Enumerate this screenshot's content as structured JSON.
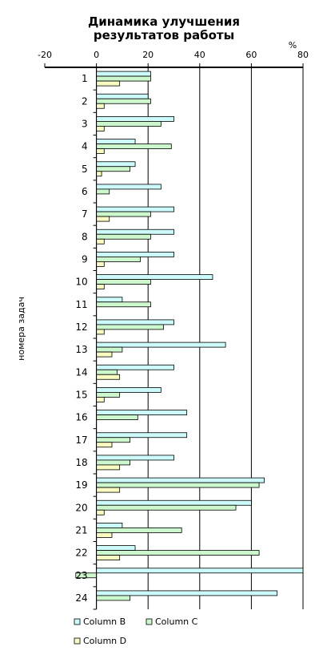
{
  "chart_data": {
    "type": "bar",
    "orientation": "horizontal",
    "title_lines": [
      "Динамика улучшения",
      "результатов работы"
    ],
    "xlabel_unit": "%",
    "ylabel": "номера задач",
    "xlim": [
      -20,
      80
    ],
    "xticks": [
      -20,
      0,
      20,
      40,
      60,
      80
    ],
    "grid": "vertical",
    "legend_position": "bottom",
    "categories": [
      "1",
      "2",
      "3",
      "4",
      "5",
      "6",
      "7",
      "8",
      "9",
      "10",
      "11",
      "12",
      "13",
      "14",
      "15",
      "16",
      "17",
      "18",
      "19",
      "20",
      "21",
      "22",
      "23",
      "24"
    ],
    "series": [
      {
        "name": "Column B",
        "color": "#cdfafa",
        "values": [
          21,
          20,
          30,
          15,
          15,
          25,
          30,
          30,
          30,
          45,
          10,
          30,
          50,
          30,
          25,
          35,
          35,
          30,
          65,
          60,
          10,
          15,
          80,
          70
        ]
      },
      {
        "name": "Column C",
        "color": "#cdf7cd",
        "values": [
          21,
          21,
          25,
          29,
          13,
          5,
          21,
          21,
          17,
          21,
          21,
          26,
          10,
          8,
          9,
          16,
          13,
          13,
          63,
          54,
          33,
          63,
          -8,
          13
        ]
      },
      {
        "name": "Column D",
        "color": "#fafac3",
        "values": [
          9,
          3,
          3,
          3,
          2,
          0,
          5,
          3,
          3,
          3,
          0,
          3,
          6,
          9,
          3,
          0,
          6,
          9,
          9,
          3,
          6,
          9,
          0,
          0
        ]
      }
    ]
  }
}
